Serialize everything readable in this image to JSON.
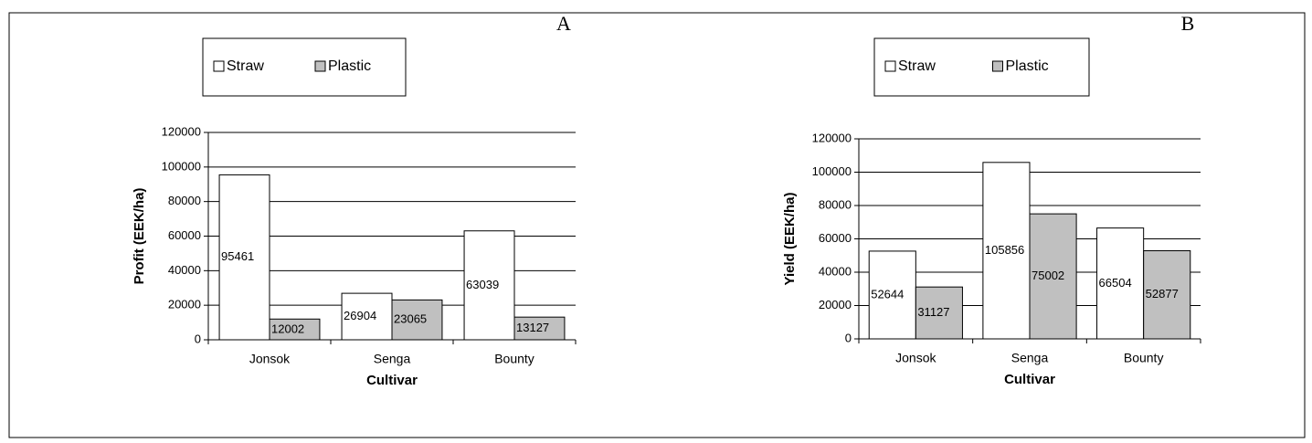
{
  "chart_data": [
    {
      "type": "bar",
      "title": "A",
      "y_label": "Profit (EEK/ha)",
      "x_label": "Cultivar",
      "categories": [
        "Jonsok",
        "Senga",
        "Bounty"
      ],
      "series": [
        {
          "name": "Straw",
          "color": "#ffffff",
          "values": [
            95461,
            26904,
            63039
          ]
        },
        {
          "name": "Plastic",
          "color": "#c0c0c0",
          "values": [
            12002,
            23065,
            13127
          ]
        }
      ],
      "ylim": [
        0,
        120000
      ],
      "yticks": [
        0,
        20000,
        40000,
        60000,
        80000,
        100000,
        120000
      ],
      "grid": true,
      "legend": "top"
    },
    {
      "type": "bar",
      "title": "B",
      "y_label": "Yield (EEK/ha)",
      "x_label": "Cultivar",
      "categories": [
        "Jonsok",
        "Senga",
        "Bounty"
      ],
      "series": [
        {
          "name": "Straw",
          "color": "#ffffff",
          "values": [
            52644,
            105856,
            66504
          ]
        },
        {
          "name": "Plastic",
          "color": "#c0c0c0",
          "values": [
            31127,
            75002,
            52877
          ]
        }
      ],
      "ylim": [
        0,
        120000
      ],
      "yticks": [
        0,
        20000,
        40000,
        60000,
        80000,
        100000,
        120000
      ],
      "grid": true,
      "legend": "top"
    }
  ]
}
